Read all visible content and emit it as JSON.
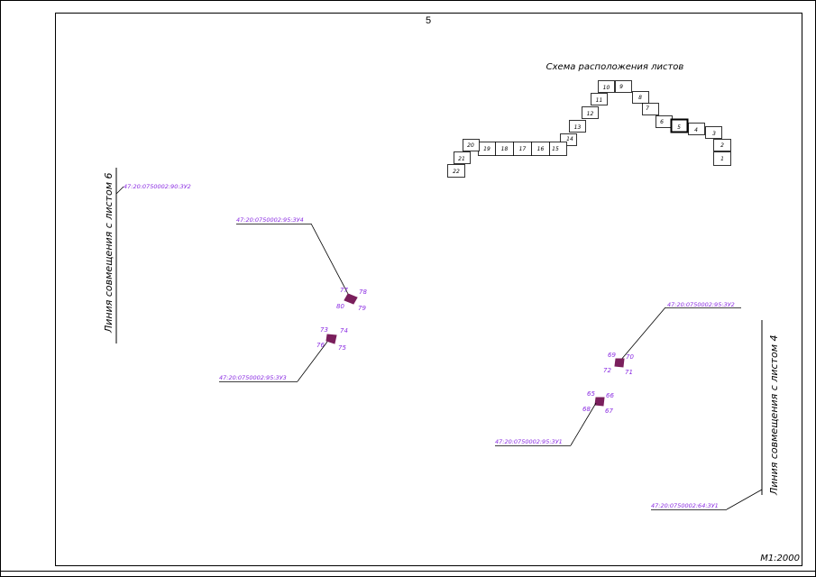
{
  "sheet": {
    "number": "5",
    "scale": "М1:2000"
  },
  "scheme": {
    "title": "Схема расположения листов",
    "cells": [
      "1",
      "2",
      "3",
      "4",
      "5",
      "6",
      "7",
      "8",
      "9",
      "10",
      "11",
      "12",
      "13",
      "14",
      "15",
      "16",
      "17",
      "18",
      "19",
      "20",
      "21",
      "22"
    ],
    "current": "5"
  },
  "match_lines": {
    "left": "Линия совмещения с листом 6",
    "right": "Линия совмещения с листом 4"
  },
  "parcels": {
    "p90_zu2": "47:20:0750002:90:ЗУ2",
    "p95_zu4": "47:20:0750002:95:ЗУ4",
    "p95_zu3": "47:20:0750002:95:ЗУ3",
    "p95_zu2": "47:20:0750002:95:ЗУ2",
    "p95_zu1": "47:20:0750002:95:ЗУ1",
    "p64_zu1": "47:20:0750002:64:ЗУ1"
  },
  "points": {
    "p65": "65",
    "p66": "66",
    "p67": "67",
    "p68": "68",
    "p69": "69",
    "p70": "70",
    "p71": "71",
    "p72": "72",
    "p73": "73",
    "p74": "74",
    "p75": "75",
    "p76": "76",
    "p77": "77",
    "p78": "78",
    "p79": "79",
    "p80": "80"
  },
  "colors": {
    "label": "#8a2be2",
    "line": "#000000",
    "parcel_fill": "#7a1f5c"
  }
}
